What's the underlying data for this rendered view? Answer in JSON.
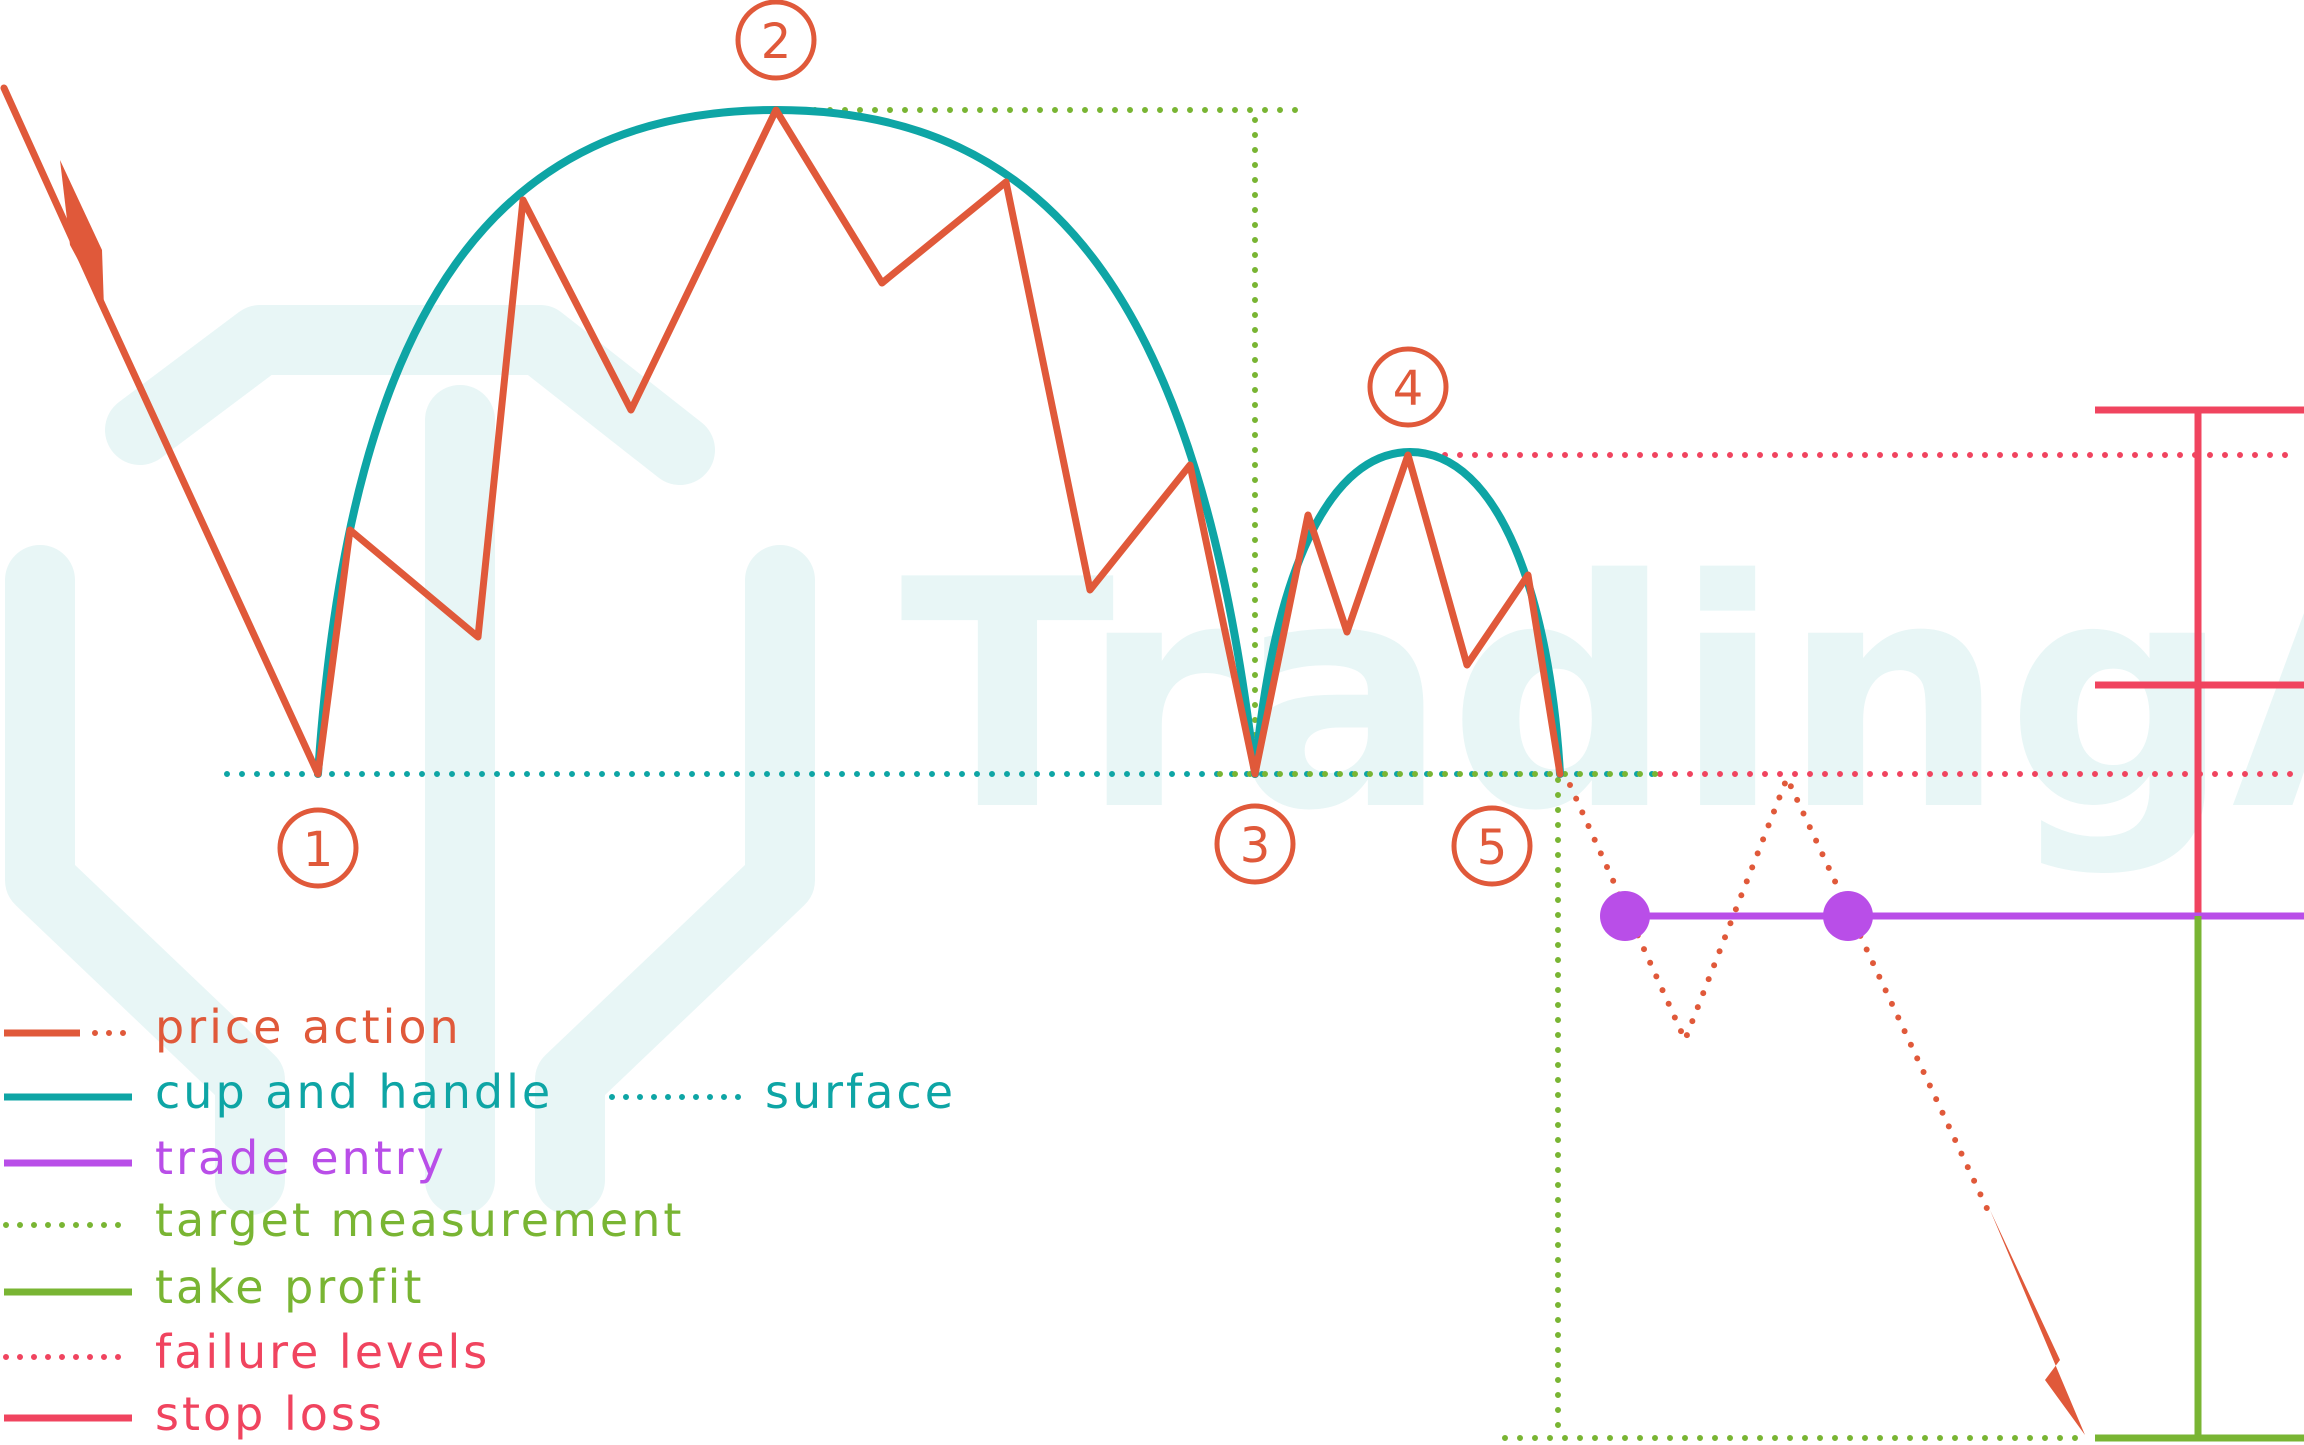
{
  "watermark": "TradingAxe",
  "points": [
    {
      "label": "1"
    },
    {
      "label": "2"
    },
    {
      "label": "3"
    },
    {
      "label": "4"
    },
    {
      "label": "5"
    }
  ],
  "legend": [
    {
      "id": "price-action",
      "label": "price action",
      "color": "#e0593a",
      "style": "solid-dotted"
    },
    {
      "id": "cup-and-handle",
      "label": "cup and handle",
      "color": "#0ea5a5",
      "style": "solid"
    },
    {
      "id": "surface",
      "label": "surface",
      "color": "#0ea5a5",
      "style": "dotted"
    },
    {
      "id": "trade-entry",
      "label": "trade entry",
      "color": "#b94ee8",
      "style": "solid"
    },
    {
      "id": "target-measurement",
      "label": "target measurement",
      "color": "#79b533",
      "style": "dotted"
    },
    {
      "id": "take-profit",
      "label": "take profit",
      "color": "#79b533",
      "style": "solid"
    },
    {
      "id": "failure-levels",
      "label": "failure levels",
      "color": "#f0445f",
      "style": "dotted"
    },
    {
      "id": "stop-loss",
      "label": "stop loss",
      "color": "#f0445f",
      "style": "solid"
    }
  ],
  "colors": {
    "price": "#e0593a",
    "cup": "#0ea5a5",
    "entry": "#b94ee8",
    "target": "#79b533",
    "failure": "#f0445f",
    "watermark": "#e8f6f6"
  }
}
